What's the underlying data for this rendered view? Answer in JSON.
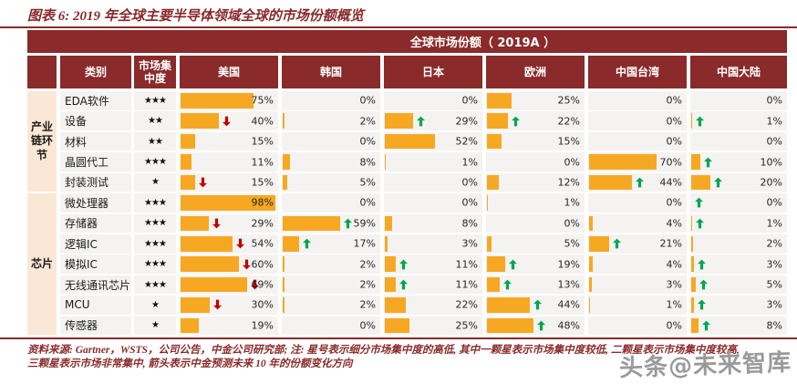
{
  "title": "图表 6: 2019 年全球主要半导体领域全球的市场份额概览",
  "table": {
    "merged_header": "全球市场份额（ 2019A ）",
    "columns": [
      "类别",
      "市场集中度",
      "美国",
      "韩国",
      "日本",
      "欧洲",
      "中国台湾",
      "中国大陆"
    ]
  },
  "chart_data": {
    "type": "table",
    "title": "全球市场份额（2019A）",
    "value_suffix": "%",
    "star_max": 3,
    "groups": [
      {
        "label": "产业链环节",
        "display": "产业\n链环\n节",
        "row_count": 5
      },
      {
        "label": "芯片",
        "display": "芯片",
        "row_count": 7
      }
    ],
    "categories": [
      "EDA软件",
      "设备",
      "材料",
      "晶圆代工",
      "封装测试",
      "微处理器",
      "存储器",
      "逻辑IC",
      "模拟IC",
      "无线通讯芯片",
      "MCU",
      "传感器"
    ],
    "concentration_stars": [
      3,
      2,
      2,
      3,
      1,
      3,
      3,
      3,
      3,
      3,
      1,
      1
    ],
    "series": [
      {
        "name": "美国",
        "values": [
          75,
          40,
          15,
          11,
          15,
          98,
          29,
          54,
          60,
          69,
          30,
          19
        ],
        "trends": [
          "",
          "down",
          "",
          "",
          "down",
          "",
          "down",
          "down",
          "down",
          "down",
          "down",
          ""
        ]
      },
      {
        "name": "韩国",
        "values": [
          0,
          2,
          0,
          8,
          5,
          0,
          59,
          17,
          2,
          2,
          2,
          0
        ],
        "trends": [
          "",
          "",
          "",
          "",
          "",
          "",
          "up",
          "up",
          "",
          "",
          "",
          ""
        ]
      },
      {
        "name": "日本",
        "values": [
          0,
          29,
          52,
          1,
          0,
          0,
          8,
          3,
          11,
          11,
          22,
          25
        ],
        "trends": [
          "",
          "up",
          "",
          "",
          "",
          "",
          "",
          "",
          "up",
          "up",
          "",
          ""
        ]
      },
      {
        "name": "欧洲",
        "values": [
          25,
          22,
          15,
          0,
          12,
          1,
          0,
          5,
          19,
          13,
          44,
          48
        ],
        "trends": [
          "",
          "up",
          "",
          "",
          "",
          "",
          "",
          "",
          "up",
          "up",
          "up",
          "up"
        ]
      },
      {
        "name": "中国台湾",
        "values": [
          0,
          0,
          0,
          70,
          44,
          0,
          4,
          21,
          4,
          3,
          1,
          0
        ],
        "trends": [
          "",
          "",
          "",
          "",
          "up",
          "",
          "",
          "up",
          "",
          "",
          "",
          ""
        ]
      },
      {
        "name": "中国大陆",
        "values": [
          0,
          1,
          0,
          10,
          20,
          0,
          1,
          2,
          3,
          5,
          3,
          8
        ],
        "trends": [
          "",
          "up",
          "",
          "up",
          "up",
          "up",
          "up",
          "",
          "up",
          "up",
          "up",
          "up"
        ]
      }
    ]
  },
  "footnote": {
    "line1": "资料来源: Gartner，WSTS，公司公告，中金公司研究部; 注: 星号表示细分市场集中度的高低, 其中一颗星表示市场集中度较低, 二颗星表示市场集中度较高,",
    "line2": "三颗星表示市场非常集中, 箭头表示中金预测未来 10 年的份额变化方向"
  },
  "watermark": "头条@未来智库",
  "colors": {
    "header_maroon": "#8a2a2a",
    "bar_orange": "#f7a823",
    "trend_up_green": "#00a651",
    "trend_down_red": "#c00000",
    "cell_bg": "#f4f3f1",
    "group_bg": "#fbe7d5",
    "text_dark": "#262626"
  }
}
